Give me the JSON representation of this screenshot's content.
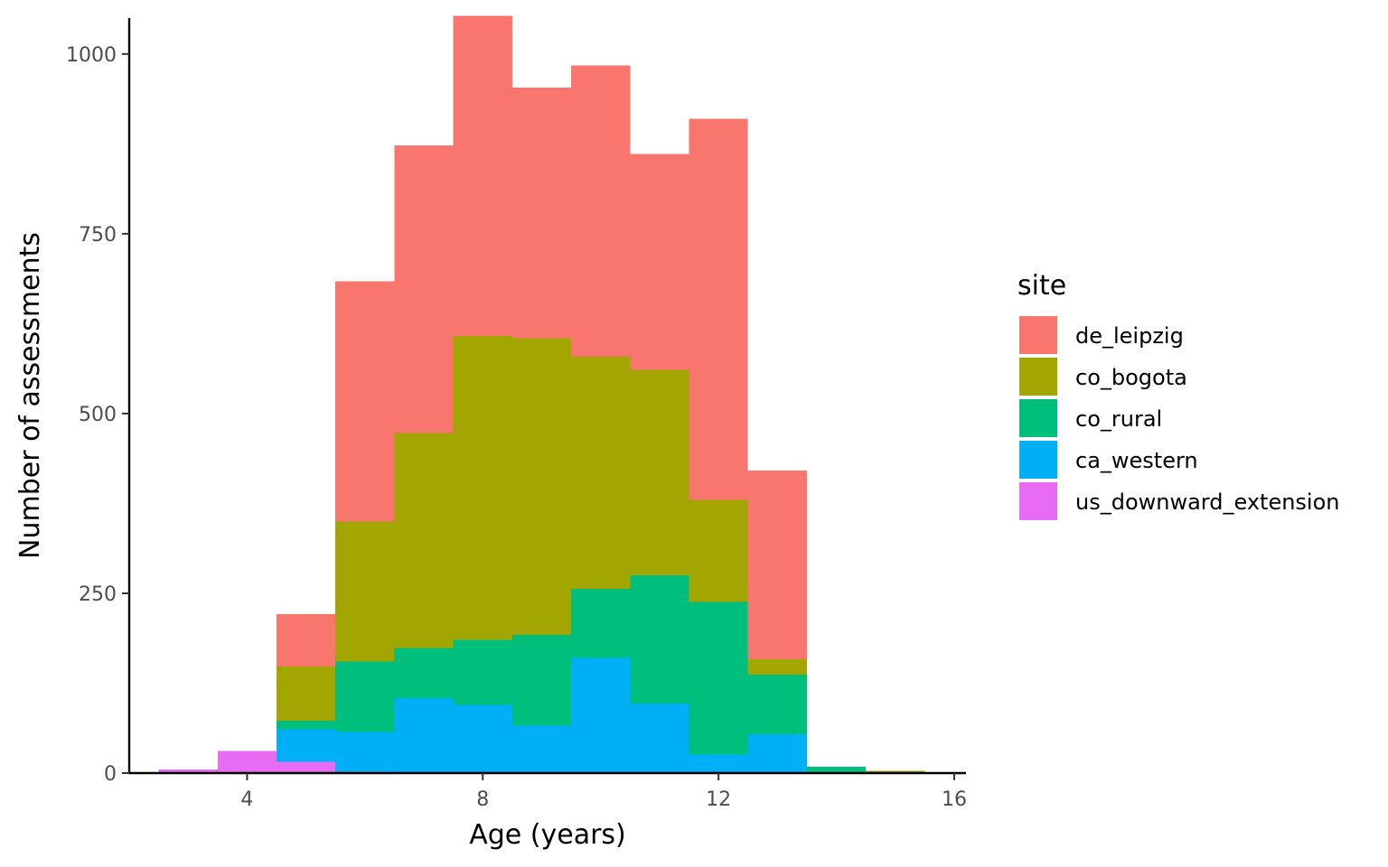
{
  "chart_data": {
    "type": "bar",
    "stacked": true,
    "title": "",
    "xlabel": "Age (years)",
    "ylabel": "Number of assessments",
    "xlim": [
      2,
      16.2
    ],
    "ylim": [
      0,
      1050
    ],
    "x_ticks": [
      4,
      8,
      12,
      16
    ],
    "y_ticks": [
      0,
      250,
      500,
      750,
      1000
    ],
    "grid": false,
    "legend": {
      "title": "site",
      "position": "right"
    },
    "bin_width": 1,
    "x": [
      3,
      4,
      5,
      6,
      7,
      8,
      9,
      10,
      11,
      12,
      13,
      14,
      15
    ],
    "series": [
      {
        "name": "us_downward_extension",
        "color": "#E76BF3",
        "values": [
          5,
          31,
          16,
          2,
          0,
          0,
          0,
          0,
          0,
          0,
          0,
          0,
          0
        ]
      },
      {
        "name": "ca_western",
        "color": "#00B0F6",
        "values": [
          0,
          0,
          45,
          55,
          104,
          95,
          66,
          160,
          97,
          26,
          54,
          0,
          0
        ]
      },
      {
        "name": "co_rural",
        "color": "#00BF7D",
        "values": [
          0,
          0,
          12,
          98,
          70,
          90,
          126,
          96,
          178,
          212,
          83,
          9,
          0
        ]
      },
      {
        "name": "co_bogota",
        "color": "#A3A500",
        "values": [
          0,
          0,
          75,
          195,
          299,
          423,
          413,
          323,
          286,
          142,
          21,
          0,
          3
        ]
      },
      {
        "name": "de_leipzig",
        "color": "#F8766D",
        "values": [
          0,
          0,
          73,
          334,
          400,
          445,
          348,
          405,
          300,
          530,
          263,
          0,
          0
        ]
      }
    ],
    "legend_order": [
      "de_leipzig",
      "co_bogota",
      "co_rural",
      "ca_western",
      "us_downward_extension"
    ]
  }
}
